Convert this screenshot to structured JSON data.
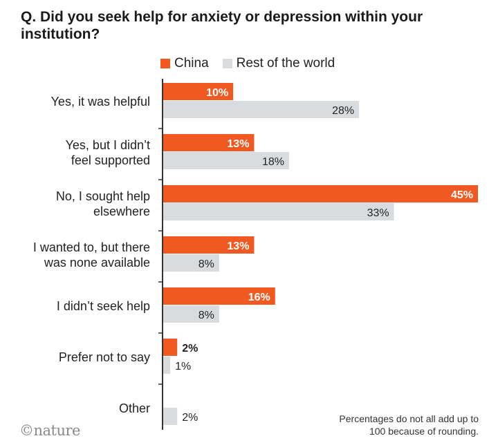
{
  "title": "Q. Did you seek help for anxiety or depression within your institution?",
  "brand": "©nature",
  "footnote": "Percentages do not all add up to 100 because of rounding.",
  "colors": {
    "china": "#f05a22",
    "rest": "#d9dcdf",
    "axis": "#333333"
  },
  "chart_data": {
    "type": "bar",
    "orientation": "horizontal",
    "title": "Q. Did you seek help for anxiety or depression within your institution?",
    "categories": [
      "Yes, it was helpful",
      "Yes, but I didn’t feel supported",
      "No, I sought help elsewhere",
      "I wanted to, but there was none available",
      "I didn’t seek help",
      "Prefer not to say",
      "Other"
    ],
    "category_lines": [
      [
        "Yes, it was helpful"
      ],
      [
        "Yes, but I didn’t",
        "feel supported"
      ],
      [
        "No, I sought help",
        "elsewhere"
      ],
      [
        "I wanted to, but there",
        "was none available"
      ],
      [
        "I didn’t seek help"
      ],
      [
        "Prefer not to say"
      ],
      [
        "Other"
      ]
    ],
    "series": [
      {
        "name": "China",
        "values": [
          10,
          13,
          45,
          13,
          16,
          2,
          null
        ],
        "labels": [
          "10%",
          "13%",
          "45%",
          "13%",
          "16%",
          "2%",
          ""
        ]
      },
      {
        "name": "Rest of the world",
        "values": [
          28,
          18,
          33,
          8,
          8,
          1,
          2
        ],
        "labels": [
          "28%",
          "18%",
          "33%",
          "8%",
          "8%",
          "1%",
          "2%"
        ]
      }
    ],
    "unit": "%",
    "xlim": [
      0,
      45
    ],
    "grid": false,
    "legend_position": "top"
  }
}
